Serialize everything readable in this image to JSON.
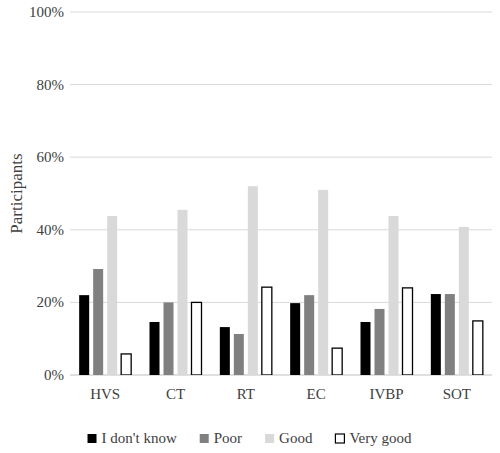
{
  "chart_data": {
    "type": "bar",
    "y_label": "Participants",
    "categories": [
      "HVS",
      "CT",
      "RT",
      "EC",
      "IVBP",
      "SOT"
    ],
    "series": [
      {
        "name": "I don't know",
        "color": "#000000",
        "values": [
          22,
          14.6,
          13.2,
          19.8,
          14.6,
          22.3
        ]
      },
      {
        "name": "Poor",
        "color": "#808080",
        "values": [
          29.2,
          20,
          11.3,
          22,
          18.2,
          22.3
        ]
      },
      {
        "name": "Good",
        "color": "#d9d9d9",
        "values": [
          43.8,
          45.5,
          52,
          51,
          43.8,
          40.8
        ]
      },
      {
        "name": "Very good",
        "color": "#ffffff",
        "values": [
          5.8,
          20,
          24.2,
          7.4,
          24,
          14.9
        ]
      }
    ],
    "ylim": [
      0,
      100
    ],
    "yticks": [
      {
        "value": 0,
        "label": "0%"
      },
      {
        "value": 20,
        "label": "20%"
      },
      {
        "value": 40,
        "label": "40%"
      },
      {
        "value": 60,
        "label": "60%"
      },
      {
        "value": 80,
        "label": "80%"
      },
      {
        "value": 100,
        "label": "100%"
      }
    ],
    "grid": true,
    "legend": "bottom"
  }
}
